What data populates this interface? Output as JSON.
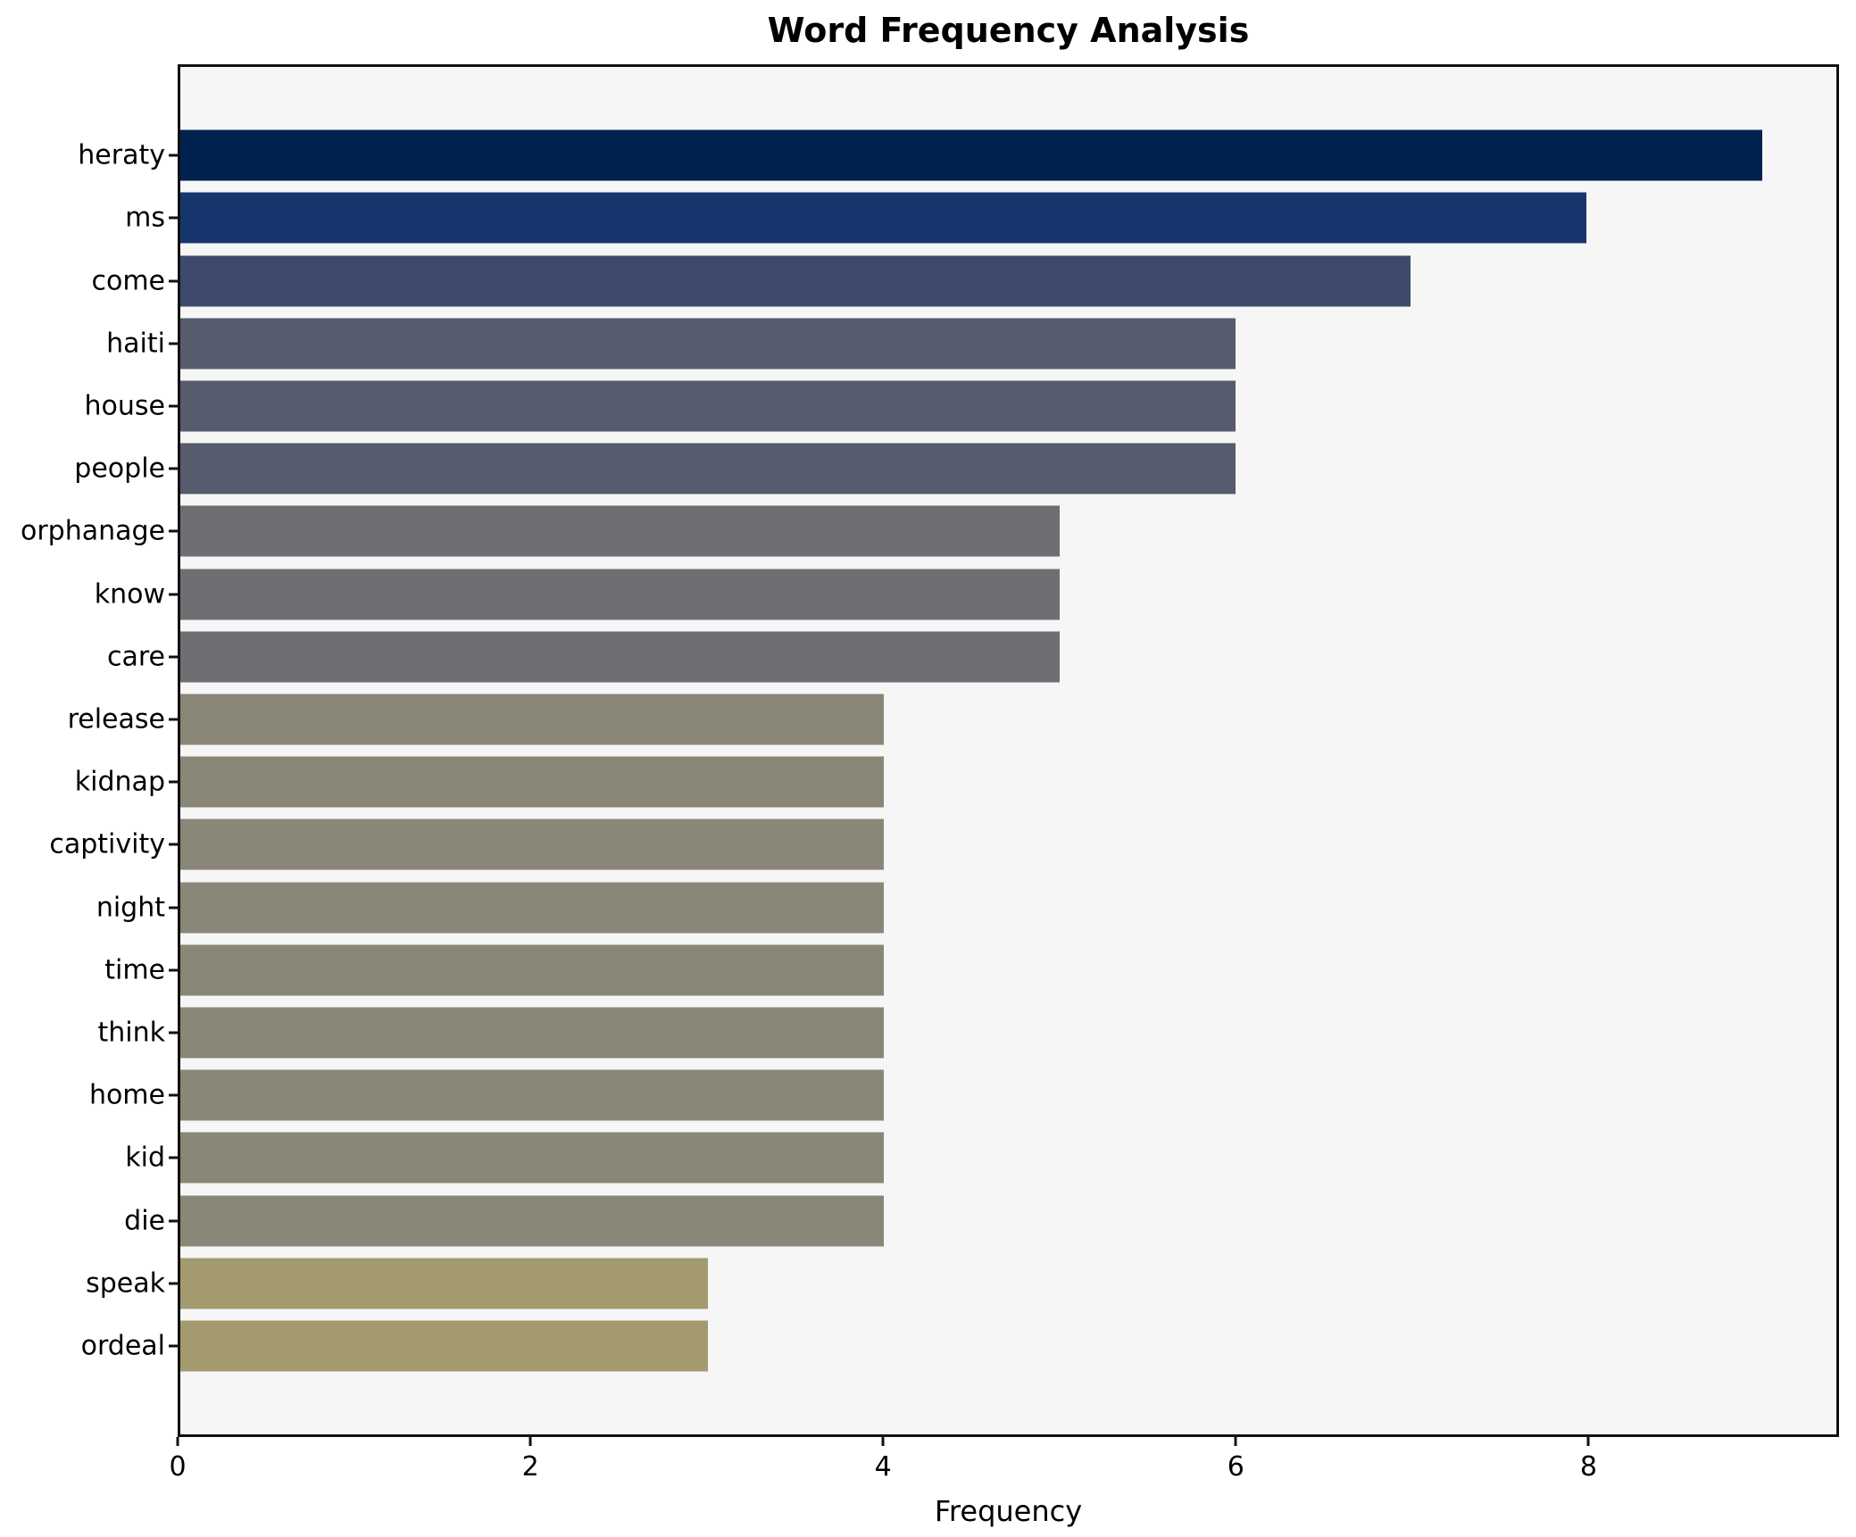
{
  "chart_data": {
    "type": "bar",
    "orientation": "horizontal",
    "title": "Word Frequency Analysis",
    "xlabel": "Frequency",
    "ylabel": "",
    "xlim": [
      0,
      9.42
    ],
    "xticks": [
      0,
      2,
      4,
      6,
      8
    ],
    "grid": false,
    "legend": null,
    "figure_background": "#ffffff",
    "plot_background": "#f6f6f7",
    "spine_color": "#111111",
    "categories": [
      "heraty",
      "ms",
      "come",
      "haiti",
      "house",
      "people",
      "orphanage",
      "know",
      "care",
      "release",
      "kidnap",
      "captivity",
      "night",
      "time",
      "think",
      "home",
      "kid",
      "die",
      "speak",
      "ordeal"
    ],
    "values": [
      9,
      8,
      7,
      6,
      6,
      6,
      5,
      5,
      5,
      4,
      4,
      4,
      4,
      4,
      4,
      4,
      4,
      4,
      3,
      3
    ],
    "bar_colors": [
      "#00224e",
      "#17366e",
      "#3d4a6b",
      "#565c6e",
      "#565c6e",
      "#565c6e",
      "#6e6f72",
      "#6e6f72",
      "#6e6f72",
      "#8a8778",
      "#8a8778",
      "#8a8778",
      "#8a8778",
      "#8a8778",
      "#8a8778",
      "#8a8778",
      "#8a8778",
      "#8a8778",
      "#a49a70",
      "#a49a70"
    ]
  }
}
